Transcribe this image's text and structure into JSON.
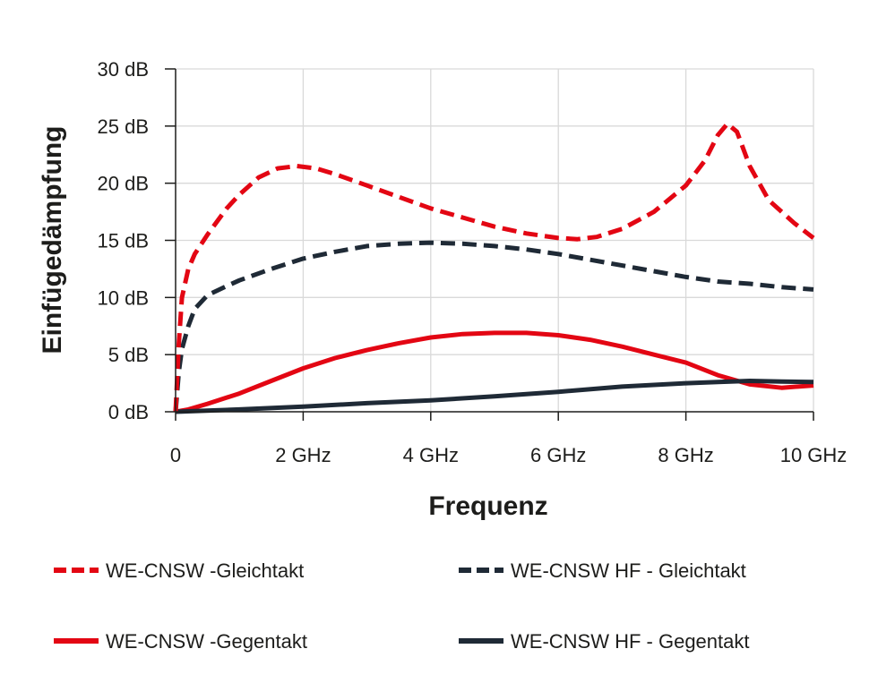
{
  "chart_data": {
    "type": "line",
    "title": "",
    "xlabel": "Frequenz",
    "ylabel": "Einfügedämpfung",
    "xlim": [
      0,
      10
    ],
    "ylim": [
      0,
      30
    ],
    "x_ticks": [
      0,
      2,
      4,
      6,
      8,
      10
    ],
    "x_tick_labels": [
      "0",
      "2 GHz",
      "4 GHz",
      "6 GHz",
      "8 GHz",
      "10 GHz"
    ],
    "y_ticks": [
      0,
      5,
      10,
      15,
      20,
      25,
      30
    ],
    "y_tick_labels": [
      "0 dB",
      "5 dB",
      "10 dB",
      "15 dB",
      "20 dB",
      "25 dB",
      "30 dB"
    ],
    "grid": true,
    "legend_position": "bottom",
    "series": [
      {
        "name": "WE-CNSW -Gleichtakt",
        "color": "#e30613",
        "style": "dashed",
        "x": [
          0,
          0.05,
          0.1,
          0.2,
          0.3,
          0.5,
          0.8,
          1.0,
          1.3,
          1.6,
          1.9,
          2.2,
          2.5,
          3.0,
          3.5,
          4.0,
          4.5,
          5.0,
          5.5,
          6.0,
          6.3,
          6.6,
          7.0,
          7.5,
          8.0,
          8.3,
          8.5,
          8.65,
          8.8,
          9.0,
          9.3,
          9.7,
          10.0
        ],
        "y": [
          0,
          6,
          10,
          12.5,
          13.8,
          15.5,
          17.8,
          19.0,
          20.5,
          21.3,
          21.5,
          21.3,
          20.8,
          19.8,
          18.8,
          17.8,
          17.0,
          16.2,
          15.6,
          15.2,
          15.1,
          15.3,
          16.0,
          17.5,
          19.8,
          22.0,
          24.2,
          25.2,
          24.5,
          21.5,
          18.5,
          16.5,
          15.2
        ]
      },
      {
        "name": "WE-CNSW HF - Gleichtakt",
        "color": "#1f2a36",
        "style": "dashed",
        "x": [
          0,
          0.05,
          0.1,
          0.2,
          0.3,
          0.5,
          0.8,
          1.0,
          1.5,
          2.0,
          2.5,
          3.0,
          3.5,
          4.0,
          4.5,
          5.0,
          5.5,
          6.0,
          6.5,
          7.0,
          7.5,
          8.0,
          8.5,
          9.0,
          9.5,
          10.0
        ],
        "y": [
          0,
          3.5,
          5.5,
          7.5,
          9.0,
          10.2,
          11.0,
          11.5,
          12.5,
          13.4,
          14.0,
          14.5,
          14.7,
          14.8,
          14.7,
          14.5,
          14.2,
          13.8,
          13.3,
          12.8,
          12.3,
          11.8,
          11.4,
          11.2,
          10.9,
          10.7
        ]
      },
      {
        "name": "WE-CNSW -Gegentakt",
        "color": "#e30613",
        "style": "solid",
        "x": [
          0,
          0.2,
          0.5,
          1.0,
          1.5,
          2.0,
          2.5,
          3.0,
          3.5,
          4.0,
          4.5,
          5.0,
          5.5,
          6.0,
          6.5,
          7.0,
          7.5,
          8.0,
          8.5,
          9.0,
          9.5,
          10.0
        ],
        "y": [
          0,
          0.2,
          0.7,
          1.6,
          2.7,
          3.8,
          4.7,
          5.4,
          6.0,
          6.5,
          6.8,
          6.9,
          6.9,
          6.7,
          6.3,
          5.7,
          5.0,
          4.3,
          3.2,
          2.4,
          2.1,
          2.3
        ]
      },
      {
        "name": "WE-CNSW HF - Gegentakt",
        "color": "#1f2a36",
        "style": "solid",
        "x": [
          0,
          1.0,
          2.0,
          3.0,
          4.0,
          5.0,
          6.0,
          7.0,
          8.0,
          8.5,
          9.0,
          9.5,
          10.0
        ],
        "y": [
          0,
          0.2,
          0.45,
          0.75,
          1.0,
          1.35,
          1.75,
          2.2,
          2.5,
          2.6,
          2.7,
          2.65,
          2.6
        ]
      }
    ]
  }
}
